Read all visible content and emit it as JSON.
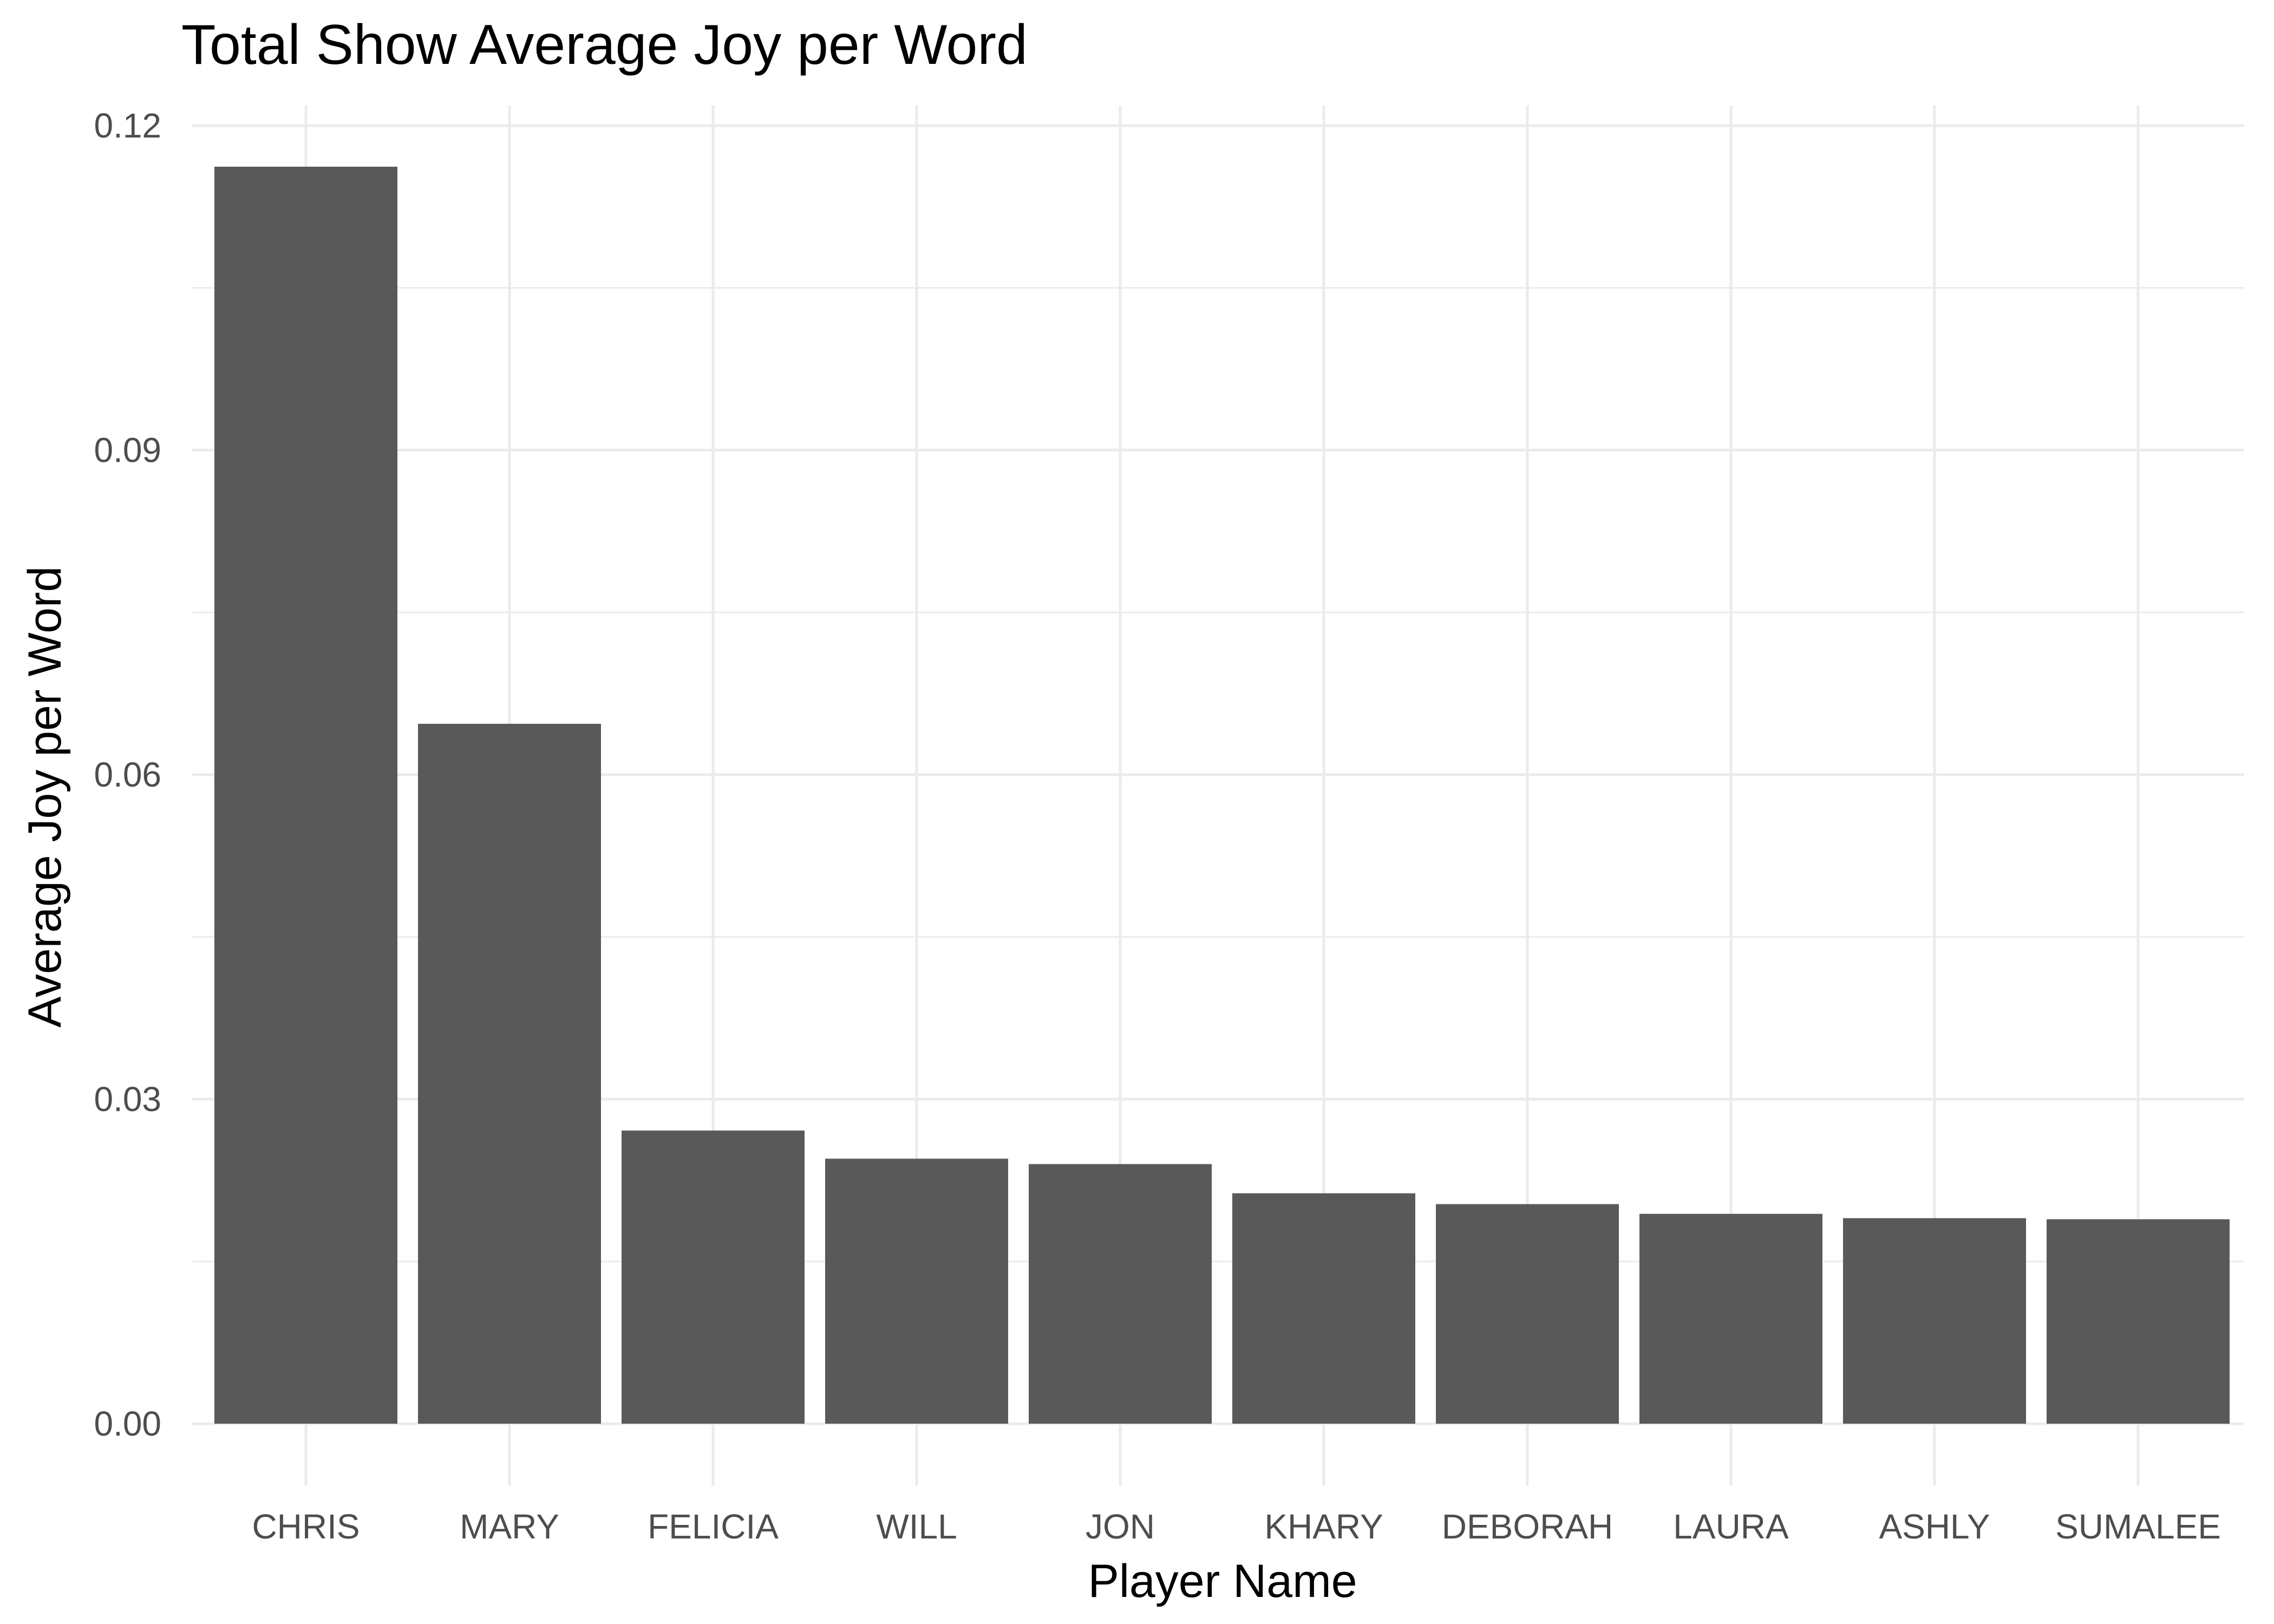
{
  "chart_data": {
    "type": "bar",
    "title": "Total Show Average Joy per Word",
    "xlabel": "Player Name",
    "ylabel": "Average Joy per Word",
    "categories": [
      "CHRIS",
      "MARY",
      "FELICIA",
      "WILL",
      "JON",
      "KHARY",
      "DEBORAH",
      "LAURA",
      "ASHLY",
      "SUMALEE"
    ],
    "values": [
      0.1162,
      0.0647,
      0.0271,
      0.0245,
      0.024,
      0.0213,
      0.0203,
      0.0194,
      0.019,
      0.0189
    ],
    "ylim": [
      0,
      0.12
    ],
    "y_ticks": [
      {
        "value": 0,
        "label": "0.00"
      },
      {
        "value": 0.03,
        "label": "0.03"
      },
      {
        "value": 0.06,
        "label": "0.06"
      },
      {
        "value": 0.09,
        "label": "0.09"
      },
      {
        "value": 0.12,
        "label": "0.12"
      }
    ],
    "grid": true,
    "legend": "none",
    "colors": {
      "bar": "#595959",
      "grid": "#ebebeb",
      "tick_text": "#4d4d4d",
      "title_text": "#000000",
      "background": "#ffffff"
    }
  }
}
